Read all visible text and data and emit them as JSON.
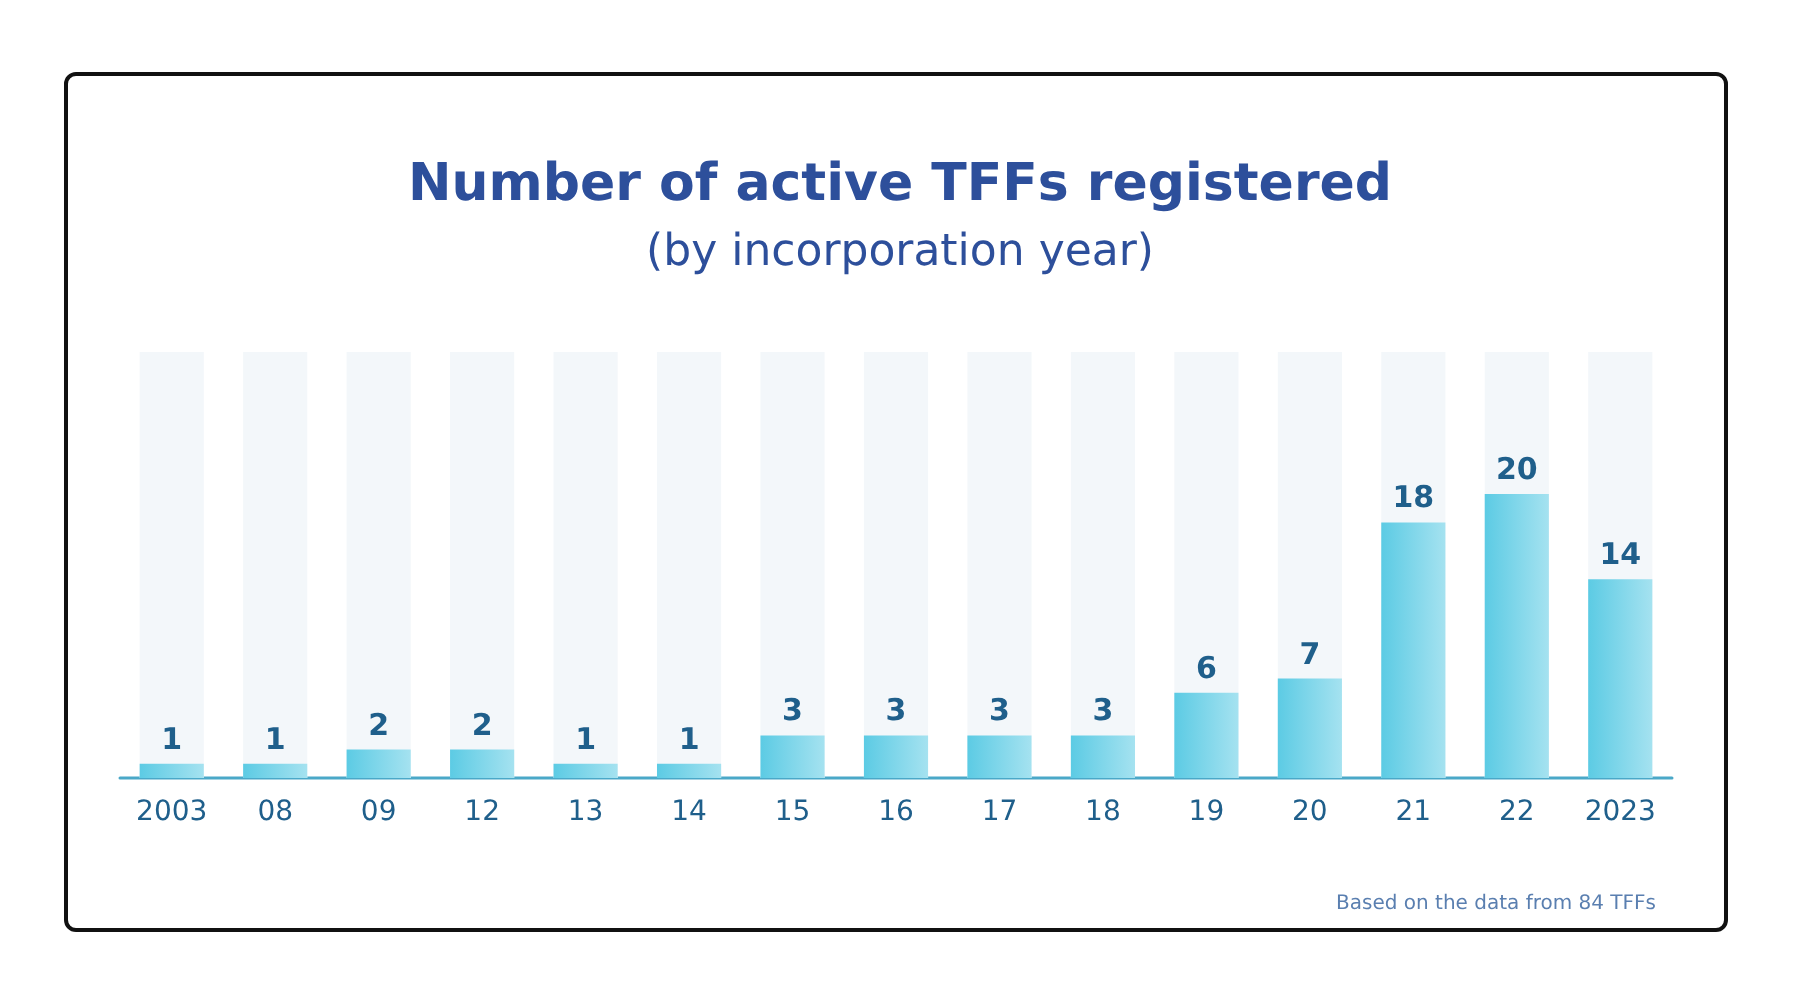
{
  "chart_data": {
    "type": "bar",
    "title": "Number of active TFFs registered",
    "subtitle": "(by incorporation year)",
    "categories": [
      "2003",
      "08",
      "09",
      "12",
      "13",
      "14",
      "15",
      "16",
      "17",
      "18",
      "19",
      "20",
      "21",
      "22",
      "2023"
    ],
    "values": [
      1,
      1,
      2,
      2,
      1,
      1,
      3,
      3,
      3,
      3,
      6,
      7,
      18,
      20,
      14
    ],
    "color": "#5ccbe4",
    "data_labels": true,
    "tick_labels": "x",
    "annotations": [
      "Based on the data from 84 TFFs"
    ]
  }
}
